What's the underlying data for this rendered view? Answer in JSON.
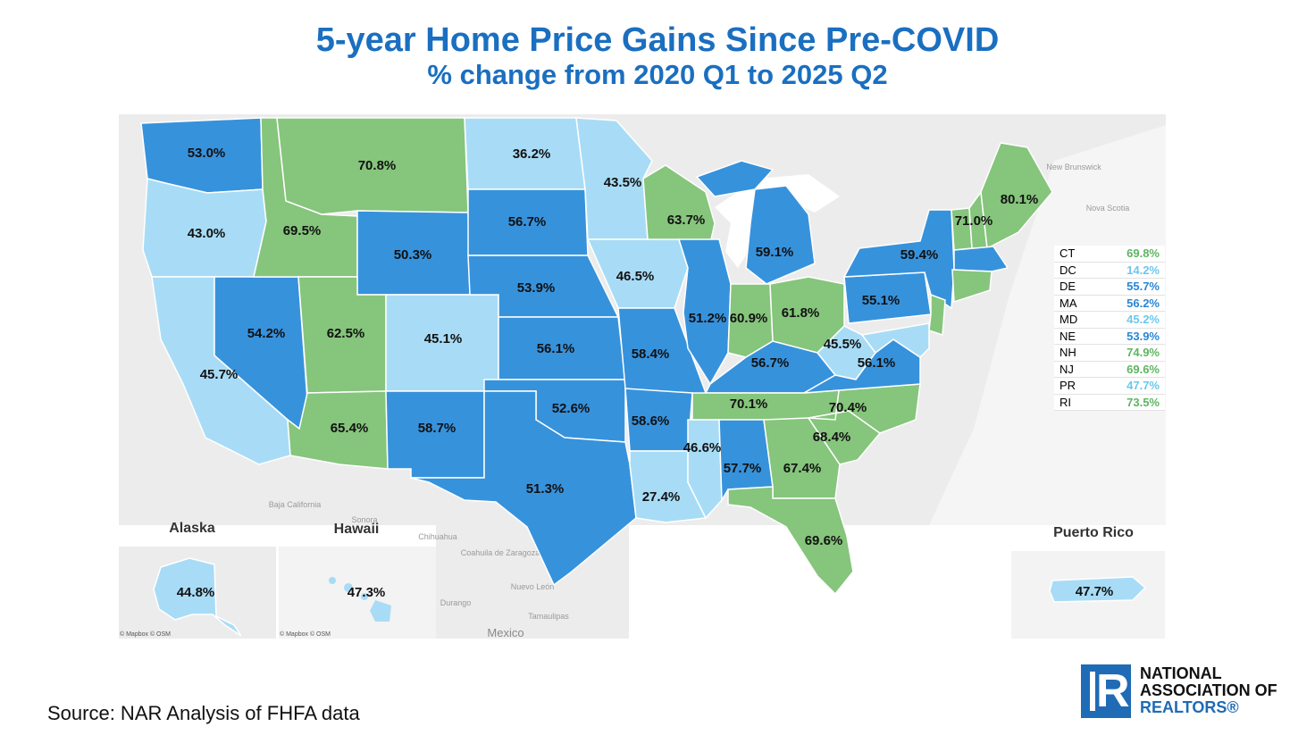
{
  "title": "5-year Home Price Gains Since Pre-COVID",
  "subtitle": "% change from 2020 Q1 to 2025 Q2",
  "colors": {
    "light_blue": "#a8dcf6",
    "medium_blue": "#3792dc",
    "green": "#86c57c",
    "land": "#ececec",
    "title": "#1a6fc0"
  },
  "states": {
    "WA": "53.0%",
    "OR": "43.0%",
    "CA": "45.7%",
    "NV": "54.2%",
    "ID": "69.5%",
    "MT": "70.8%",
    "WY": "50.3%",
    "UT": "62.5%",
    "AZ": "65.4%",
    "CO": "45.1%",
    "NM": "58.7%",
    "ND": "36.2%",
    "SD": "56.7%",
    "NE": "53.9%",
    "KS": "56.1%",
    "OK": "52.6%",
    "TX": "51.3%",
    "MN": "43.5%",
    "IA": "46.5%",
    "MO": "58.4%",
    "AR": "58.6%",
    "LA": "27.4%",
    "WI": "63.7%",
    "IL": "51.2%",
    "MI": "59.1%",
    "IN": "60.9%",
    "OH": "61.8%",
    "KY": "56.7%",
    "TN": "70.1%",
    "MS": "46.6%",
    "AL": "57.7%",
    "GA": "67.4%",
    "FL": "69.6%",
    "SC": "68.4%",
    "NC": "70.4%",
    "VA": "56.1%",
    "WV": "45.5%",
    "PA": "55.1%",
    "NY": "59.4%",
    "VT": "71.0%",
    "ME": "80.1%",
    "AK": "44.8%",
    "HI": "47.3%",
    "PR": "47.7%"
  },
  "small_states": [
    {
      "code": "CT",
      "value": "69.8%",
      "color": "#5db560"
    },
    {
      "code": "DC",
      "value": "14.2%",
      "color": "#6cc7ee"
    },
    {
      "code": "DE",
      "value": "55.7%",
      "color": "#2b86d3"
    },
    {
      "code": "MA",
      "value": "56.2%",
      "color": "#2b86d3"
    },
    {
      "code": "MD",
      "value": "45.2%",
      "color": "#6cc7ee"
    },
    {
      "code": "NE",
      "value": "53.9%",
      "color": "#2b86d3"
    },
    {
      "code": "NH",
      "value": "74.9%",
      "color": "#5db560"
    },
    {
      "code": "NJ",
      "value": "69.6%",
      "color": "#5db560"
    },
    {
      "code": "PR",
      "value": "47.7%",
      "color": "#6cc7ee"
    },
    {
      "code": "RI",
      "value": "73.5%",
      "color": "#5db560"
    }
  ],
  "insets": {
    "alaska": "Alaska",
    "hawaii": "Hawaii",
    "puerto_rico": "Puerto Rico"
  },
  "basemap_labels": {
    "new_brunswick": "New Brunswick",
    "nova_scotia": "Nova Scotia",
    "baja_california": "Baja California",
    "sonora": "Sonora",
    "chihuahua": "Chihuahua",
    "coahuila": "Coahuila de Zaragoza",
    "nuevo_leon": "Nuevo León",
    "durango": "Durango",
    "tamaulipas": "Tamaulipas",
    "mexico": "Mexico"
  },
  "credits": {
    "alaska": "© Mapbox © OSM",
    "hawaii": "© Mapbox © OSM"
  },
  "source": "Source: NAR Analysis of FHFA data",
  "logo": {
    "line1": "NATIONAL",
    "line2": "ASSOCIATION OF",
    "line3": "REALTORS®"
  }
}
